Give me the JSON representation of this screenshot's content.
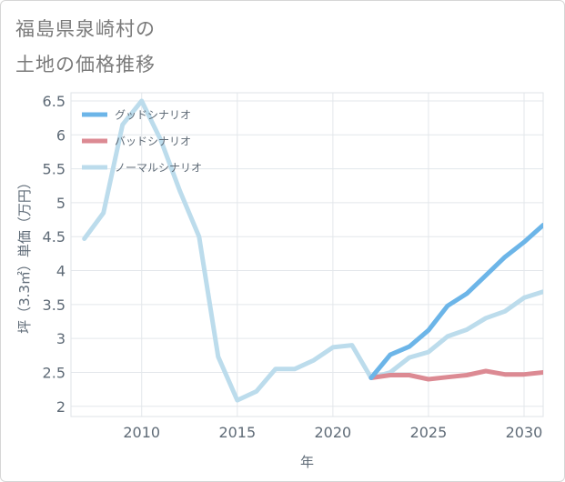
{
  "title": {
    "line1": "福島県泉崎村の",
    "line2": "土地の価格推移"
  },
  "chart_data": {
    "type": "line",
    "title": "福島県泉崎村の土地の価格推移",
    "xlabel": "年",
    "ylabel": "坪（3.3㎡）単価（万円）",
    "xlim": [
      2006.3,
      2031
    ],
    "ylim": [
      1.85,
      6.62
    ],
    "x_ticks": [
      2010,
      2015,
      2020,
      2025,
      2030
    ],
    "y_ticks": [
      "2",
      "2.5",
      "3",
      "3.5",
      "4",
      "4.5",
      "5",
      "5.5",
      "6",
      "6.5"
    ],
    "grid": true,
    "legend_position": "top-left",
    "series": [
      {
        "name": "グッドシナリオ",
        "color": "#6cb5e8",
        "x": [
          2022,
          2023,
          2024,
          2025,
          2026,
          2027,
          2028,
          2029,
          2030,
          2031
        ],
        "values": [
          2.42,
          2.76,
          2.88,
          3.12,
          3.48,
          3.66,
          3.93,
          4.2,
          4.42,
          4.67
        ]
      },
      {
        "name": "バッドシナリオ",
        "color": "#dc8a93",
        "x": [
          2022,
          2023,
          2024,
          2025,
          2026,
          2027,
          2028,
          2029,
          2030,
          2031
        ],
        "values": [
          2.42,
          2.46,
          2.46,
          2.4,
          2.43,
          2.46,
          2.52,
          2.47,
          2.47,
          2.5
        ]
      },
      {
        "name": "ノーマルシナリオ",
        "color": "#bcdcec",
        "x": [
          2007,
          2008,
          2009,
          2010,
          2011,
          2012,
          2013,
          2014,
          2015,
          2016,
          2017,
          2018,
          2019,
          2020,
          2021,
          2022,
          2023,
          2024,
          2025,
          2026,
          2027,
          2028,
          2029,
          2030,
          2031
        ],
        "values": [
          4.47,
          4.85,
          6.15,
          6.5,
          5.92,
          5.17,
          4.5,
          2.73,
          2.09,
          2.22,
          2.55,
          2.55,
          2.68,
          2.87,
          2.9,
          2.42,
          2.5,
          2.72,
          2.8,
          3.03,
          3.13,
          3.3,
          3.4,
          3.6,
          3.69
        ]
      }
    ]
  }
}
